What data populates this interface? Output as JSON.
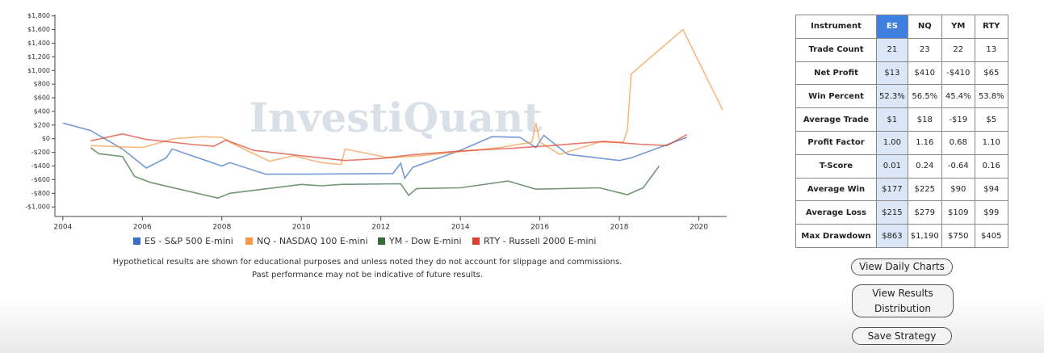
{
  "chart_data": {
    "type": "line",
    "watermark": "InvestiQuant",
    "xlim": [
      2003.8,
      2020.7
    ],
    "xticks": [
      2004,
      2006,
      2008,
      2010,
      2012,
      2014,
      2016,
      2018,
      2020
    ],
    "ylim": [
      -1140,
      1820
    ],
    "yticks": [
      {
        "value": 1800,
        "label": "$1,800"
      },
      {
        "value": 1600,
        "label": "$1,600"
      },
      {
        "value": 1400,
        "label": "$1,400"
      },
      {
        "value": 1200,
        "label": "$1,200"
      },
      {
        "value": 1000,
        "label": "$1,000"
      },
      {
        "value": 800,
        "label": "$800"
      },
      {
        "value": 600,
        "label": "$600"
      },
      {
        "value": 400,
        "label": "$400"
      },
      {
        "value": 200,
        "label": "$200"
      },
      {
        "value": 0,
        "label": "$0"
      },
      {
        "value": -200,
        "label": "-$200"
      },
      {
        "value": -400,
        "label": "-$400"
      },
      {
        "value": -600,
        "label": "-$600"
      },
      {
        "value": -800,
        "label": "-$800"
      },
      {
        "value": -1000,
        "label": "-$1,000"
      }
    ],
    "series": [
      {
        "name": "ES - S&P 500 E-mini",
        "color": "#3a6fc4",
        "x": [
          2004,
          2004.7,
          2005.5,
          2006.1,
          2006.6,
          2006.75,
          2008,
          2008.2,
          2009.1,
          2010,
          2012.3,
          2012.5,
          2012.6,
          2012.8,
          2014,
          2014.8,
          2015.5,
          2015.9,
          2016.1,
          2016.7,
          2018,
          2018.3,
          2019,
          2019.7
        ],
        "values": [
          230,
          120,
          -150,
          -430,
          -280,
          -150,
          -400,
          -350,
          -520,
          -520,
          -510,
          -360,
          -580,
          -420,
          -170,
          30,
          20,
          -130,
          50,
          -230,
          -320,
          -280,
          -130,
          20
        ]
      },
      {
        "name": "NQ - NASDAQ 100 E-mini",
        "color": "#f39a4a",
        "x": [
          2004.7,
          2006,
          2006.8,
          2007.5,
          2008,
          2008.3,
          2009.2,
          2009.8,
          2010.5,
          2011,
          2011.1,
          2012.2,
          2013,
          2015,
          2015.8,
          2015.9,
          2016,
          2016.5,
          2017.5,
          2018.1,
          2018.2,
          2018.3,
          2019.6,
          2020.6
        ],
        "values": [
          -100,
          -130,
          0,
          30,
          20,
          -80,
          -330,
          -250,
          -350,
          -380,
          -150,
          -280,
          -250,
          -130,
          -50,
          230,
          -50,
          -230,
          -50,
          -50,
          120,
          950,
          1600,
          420
        ]
      },
      {
        "name": "YM - Dow E-mini",
        "color": "#3a6a3a",
        "x": [
          2004.7,
          2004.9,
          2005.5,
          2005.8,
          2006.2,
          2007.9,
          2008.2,
          2010,
          2010.5,
          2011,
          2012.5,
          2012.7,
          2012.9,
          2014,
          2015.2,
          2015.9,
          2017.5,
          2018.2,
          2018.6,
          2019
        ],
        "values": [
          -130,
          -220,
          -260,
          -550,
          -640,
          -870,
          -800,
          -670,
          -690,
          -670,
          -660,
          -830,
          -730,
          -720,
          -620,
          -740,
          -720,
          -820,
          -720,
          -400
        ]
      },
      {
        "name": "RTY - Russell 2000 E-mini",
        "color": "#d9412c",
        "x": [
          2004.7,
          2005.5,
          2006.1,
          2007.2,
          2007.8,
          2008.1,
          2008.8,
          2010,
          2011.1,
          2012,
          2012.7,
          2014,
          2015.3,
          2016.3,
          2017.6,
          2018.5,
          2019.2,
          2019.7
        ],
        "values": [
          -30,
          70,
          -10,
          -80,
          -110,
          -20,
          -170,
          -250,
          -320,
          -290,
          -240,
          -180,
          -140,
          -100,
          -40,
          -80,
          -100,
          60
        ]
      }
    ]
  },
  "disclaimer": [
    "Hypothetical results are shown for educational purposes and unless noted they do not account for slippage and commissions.",
    "Past performance may not be indicative of future results."
  ],
  "table": {
    "header": [
      "Instrument",
      "ES",
      "NQ",
      "YM",
      "RTY"
    ],
    "rows": [
      [
        "Trade Count",
        "21",
        "23",
        "22",
        "13"
      ],
      [
        "Net Profit",
        "$13",
        "$410",
        "-$410",
        "$65"
      ],
      [
        "Win Percent",
        "52.3%",
        "56.5%",
        "45.4%",
        "53.8%"
      ],
      [
        "Average Trade",
        "$1",
        "$18",
        "-$19",
        "$5"
      ],
      [
        "Profit Factor",
        "1.00",
        "1.16",
        "0.68",
        "1.10"
      ],
      [
        "T-Score",
        "0.01",
        "0.24",
        "-0.64",
        "0.16"
      ],
      [
        "Average Win",
        "$177",
        "$225",
        "$90",
        "$94"
      ],
      [
        "Average Loss",
        "$215",
        "$279",
        "$109",
        "$99"
      ],
      [
        "Max Drawdown",
        "$863",
        "$1,190",
        "$750",
        "$405"
      ]
    ]
  },
  "buttons": [
    "View Daily Charts",
    "View Results Distribution",
    "Save Strategy"
  ]
}
